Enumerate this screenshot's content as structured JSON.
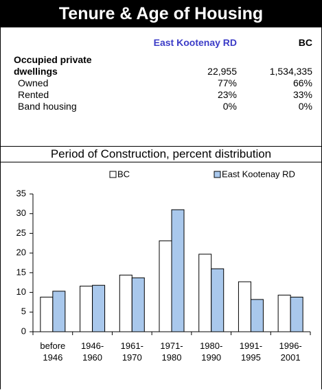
{
  "header": {
    "title": "Tenure & Age of Housing"
  },
  "table": {
    "columns": [
      "East Kootenay RD",
      "BC"
    ],
    "rows": [
      {
        "label": "Occupied private dwellings",
        "values": [
          "22,955",
          "1,534,335"
        ]
      },
      {
        "label": "Owned",
        "values": [
          "77%",
          "66%"
        ]
      },
      {
        "label": "Rented",
        "values": [
          "23%",
          "33%"
        ]
      },
      {
        "label": "Band housing",
        "values": [
          "0%",
          "0%"
        ]
      }
    ]
  },
  "chart_data": {
    "type": "bar",
    "title": "Period of Construction, percent distribution",
    "categories": [
      "before 1946",
      "1946-1960",
      "1961-1970",
      "1971-1980",
      "1980-1990",
      "1991-1995",
      "1996-2001"
    ],
    "series": [
      {
        "name": "BC",
        "color": "#ffffff",
        "values": [
          8.8,
          11.6,
          14.4,
          23.1,
          19.7,
          12.7,
          9.3
        ]
      },
      {
        "name": "East Kootenay RD",
        "color": "#a9c8ec",
        "values": [
          10.3,
          11.8,
          13.7,
          31.0,
          16.0,
          8.2,
          8.8
        ]
      }
    ],
    "ylim": [
      0,
      35
    ],
    "yticks": [
      0,
      5,
      10,
      15,
      20,
      25,
      30,
      35
    ],
    "legend": "top"
  }
}
